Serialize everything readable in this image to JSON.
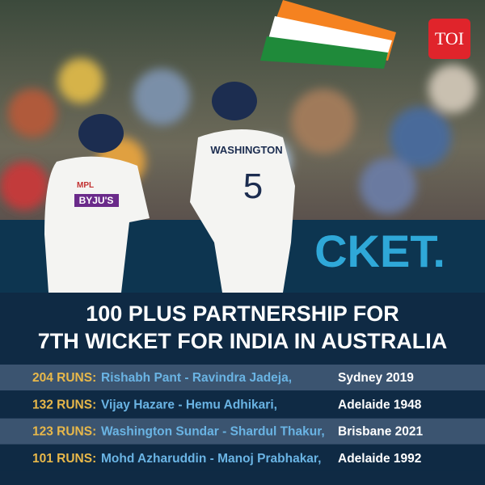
{
  "logo": "TOI",
  "photo": {
    "jersey_name": "WASHINGTON",
    "jersey_number": "5",
    "sponsor": "BYJU'S",
    "banner": "CKET."
  },
  "title": {
    "lines": [
      "100 PLUS PARTNERSHIP FOR",
      "7TH WICKET FOR INDIA IN AUSTRALIA"
    ]
  },
  "table": {
    "rows": [
      [
        "204 RUNS:",
        "Rishabh Pant - Ravindra Jadeja,",
        "Sydney 2019"
      ],
      [
        "132 RUNS:",
        "Vijay Hazare - Hemu Adhikari,",
        "Adelaide 1948"
      ],
      [
        "123 RUNS:",
        "Washington Sundar - Shardul Thakur,",
        "Brisbane 2021"
      ],
      [
        "101 RUNS:",
        "Mohd Azharuddin - Manoj Prabhakar,",
        "Adelaide 1992"
      ]
    ]
  }
}
